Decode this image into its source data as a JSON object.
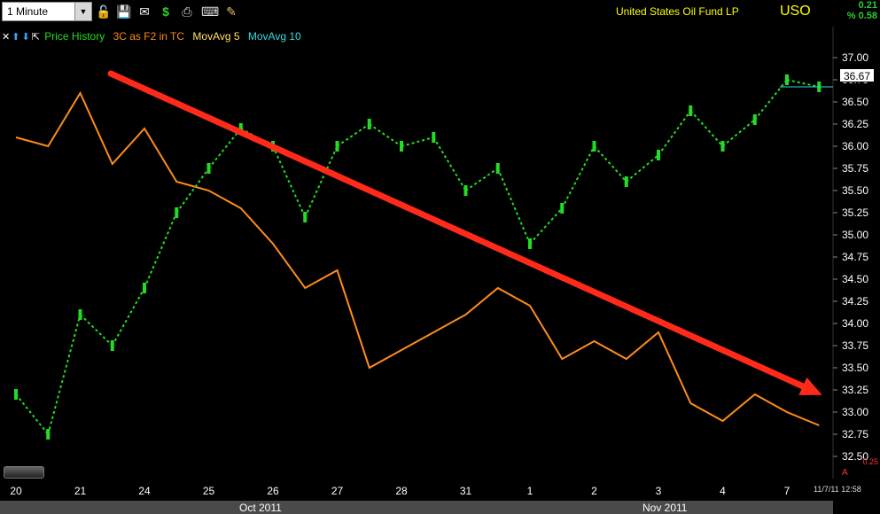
{
  "toolbar": {
    "interval": "1 Minute",
    "icons": [
      "lock-icon",
      "save-icon",
      "email-icon",
      "dollar-icon",
      "print-icon",
      "keyboard-icon",
      "pencil-icon"
    ]
  },
  "header": {
    "symbol_name": "United States Oil Fund LP",
    "symbol": "USO",
    "change_abs": "0.21",
    "change_pct": "% 0.58"
  },
  "legend": {
    "price_history": "Price History",
    "indicator": "3C as F2 in TC",
    "mavg5": "MovAvg 5",
    "mavg10": "MovAvg 10"
  },
  "colors": {
    "price": "#22dd22",
    "indicator": "#ff8c1a",
    "mavg5": "#ffe066",
    "mavg10": "#33dddd",
    "trendline": "#ff2a1a",
    "axis_text": "#ffffff"
  },
  "last_price": "36.67",
  "footer": {
    "months": [
      "Oct 2011",
      "Nov 2011"
    ],
    "timestamp": "11/7/11 12:58",
    "indicator_value": "0.25",
    "indicator_ctl": "A"
  },
  "chart_data": {
    "type": "line",
    "yticks": [
      "37.00",
      "36.75",
      "36.50",
      "36.25",
      "36.00",
      "35.75",
      "35.50",
      "35.25",
      "35.00",
      "34.75",
      "34.50",
      "34.25",
      "34.00",
      "33.75",
      "33.50",
      "33.25",
      "33.00",
      "32.75",
      "32.50"
    ],
    "ylim": [
      32.25,
      37.25
    ],
    "xticks": [
      "20",
      "21",
      "24",
      "25",
      "26",
      "27",
      "28",
      "31",
      "1",
      "2",
      "3",
      "4",
      "7"
    ],
    "series": [
      {
        "name": "Price History",
        "values": [
          {
            "x": "20",
            "y": 33.2
          },
          {
            "x": "20.5",
            "y": 32.75
          },
          {
            "x": "21",
            "y": 34.1
          },
          {
            "x": "21.5",
            "y": 33.75
          },
          {
            "x": "24",
            "y": 34.4
          },
          {
            "x": "24.5",
            "y": 35.25
          },
          {
            "x": "25",
            "y": 35.75
          },
          {
            "x": "25.5",
            "y": 36.2
          },
          {
            "x": "26",
            "y": 36.0
          },
          {
            "x": "26.5",
            "y": 35.2
          },
          {
            "x": "27",
            "y": 36.0
          },
          {
            "x": "27.5",
            "y": 36.25
          },
          {
            "x": "28",
            "y": 36.0
          },
          {
            "x": "28.5",
            "y": 36.1
          },
          {
            "x": "31",
            "y": 35.5
          },
          {
            "x": "31.5",
            "y": 35.75
          },
          {
            "x": "1",
            "y": 34.9
          },
          {
            "x": "1.5",
            "y": 35.3
          },
          {
            "x": "2",
            "y": 36.0
          },
          {
            "x": "2.5",
            "y": 35.6
          },
          {
            "x": "3",
            "y": 35.9
          },
          {
            "x": "3.5",
            "y": 36.4
          },
          {
            "x": "4",
            "y": 36.0
          },
          {
            "x": "4.5",
            "y": 36.3
          },
          {
            "x": "7",
            "y": 36.75
          },
          {
            "x": "7.5",
            "y": 36.67
          }
        ]
      },
      {
        "name": "3C as F2 in TC",
        "values": [
          {
            "x": "20",
            "y": 36.1
          },
          {
            "x": "20.5",
            "y": 36.0
          },
          {
            "x": "21",
            "y": 36.6
          },
          {
            "x": "21.5",
            "y": 35.8
          },
          {
            "x": "24",
            "y": 36.2
          },
          {
            "x": "24.5",
            "y": 35.6
          },
          {
            "x": "25",
            "y": 35.5
          },
          {
            "x": "25.5",
            "y": 35.3
          },
          {
            "x": "26",
            "y": 34.9
          },
          {
            "x": "26.5",
            "y": 34.4
          },
          {
            "x": "27",
            "y": 34.6
          },
          {
            "x": "27.5",
            "y": 33.5
          },
          {
            "x": "28",
            "y": 33.7
          },
          {
            "x": "28.5",
            "y": 33.9
          },
          {
            "x": "31",
            "y": 34.1
          },
          {
            "x": "31.5",
            "y": 34.4
          },
          {
            "x": "1",
            "y": 34.2
          },
          {
            "x": "1.5",
            "y": 33.6
          },
          {
            "x": "2",
            "y": 33.8
          },
          {
            "x": "2.5",
            "y": 33.6
          },
          {
            "x": "3",
            "y": 33.9
          },
          {
            "x": "3.5",
            "y": 33.1
          },
          {
            "x": "4",
            "y": 32.9
          },
          {
            "x": "4.5",
            "y": 33.2
          },
          {
            "x": "7",
            "y": 33.0
          },
          {
            "x": "7.5",
            "y": 32.85
          }
        ]
      }
    ],
    "annotations": [
      {
        "type": "trendline",
        "from": {
          "x": "21.5",
          "y": 36.82
        },
        "to": {
          "x": "7.6",
          "y": 33.25
        }
      }
    ],
    "grid": false,
    "legend_position": "top-left"
  }
}
